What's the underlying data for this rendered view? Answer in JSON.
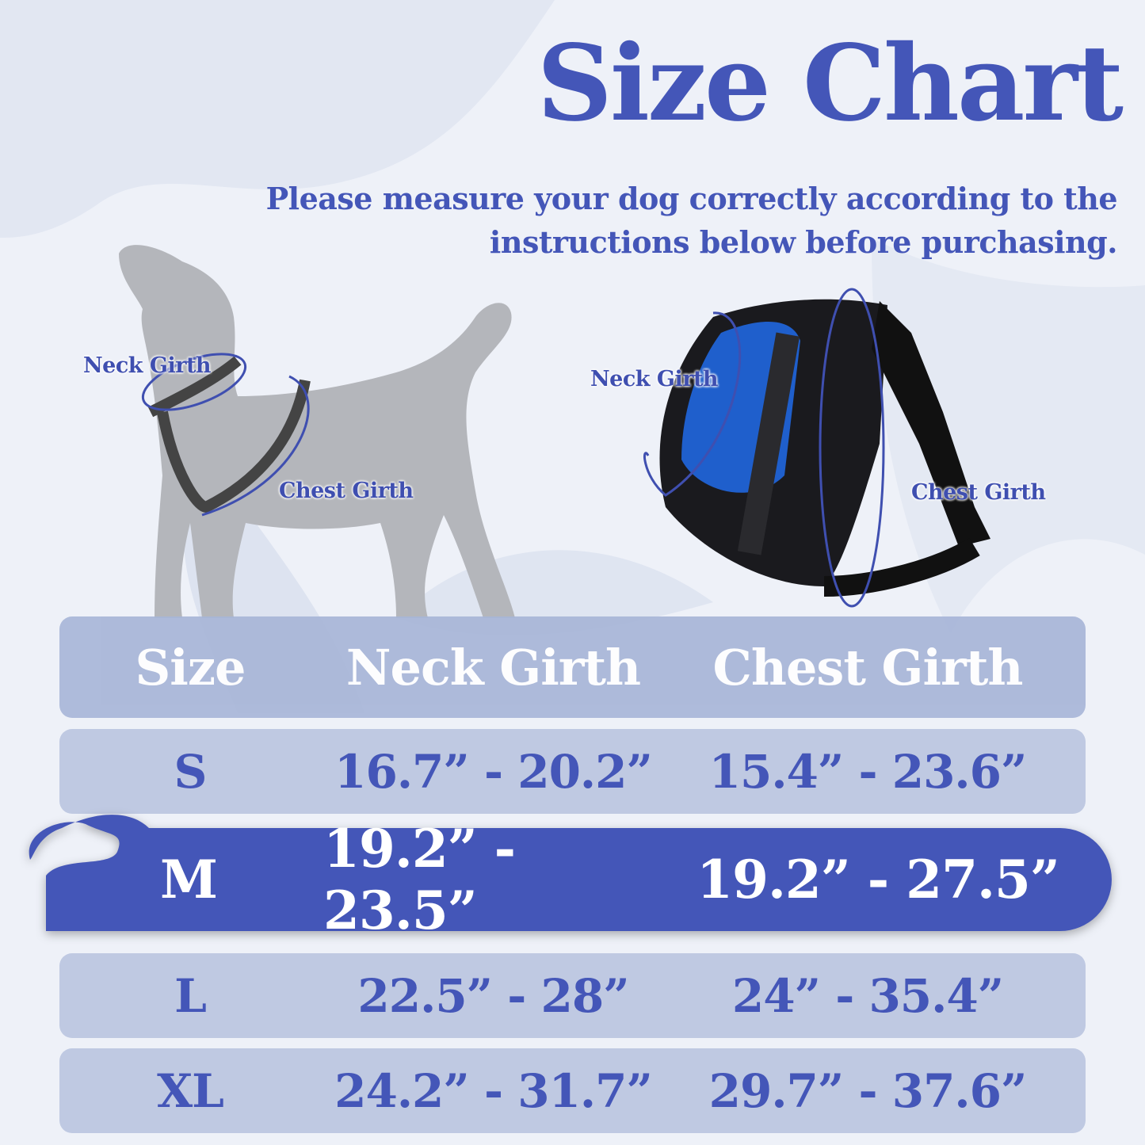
{
  "title": "Size Chart",
  "subtitle": [
    "Please measure your dog correctly according to the",
    "instructions below before purchasing."
  ],
  "diagram_labels": {
    "dog_neck": "Neck Girth",
    "dog_chest": "Chest Girth",
    "harness_neck": "Neck Girth",
    "harness_chest": "Chest Girth"
  },
  "table": {
    "headers": [
      "Size",
      "Neck Girth",
      "Chest Girth"
    ],
    "rows": [
      {
        "size": "S",
        "neck": "16.7” - 20.2”",
        "chest": "15.4” - 23.6”"
      },
      {
        "size": "M",
        "neck": "19.2” - 23.5”",
        "chest": "19.2” - 27.5”",
        "highlighted": true
      },
      {
        "size": "L",
        "neck": "22.5” - 28”",
        "chest": "24” - 35.4”"
      },
      {
        "size": "XL",
        "neck": "24.2” - 31.7”",
        "chest": "29.7” - 37.6”"
      }
    ]
  },
  "colors": {
    "accent": "#4456b8",
    "row": "#bfc9e2",
    "header_row": "#a8b6d8",
    "background": "#eef1f8"
  }
}
